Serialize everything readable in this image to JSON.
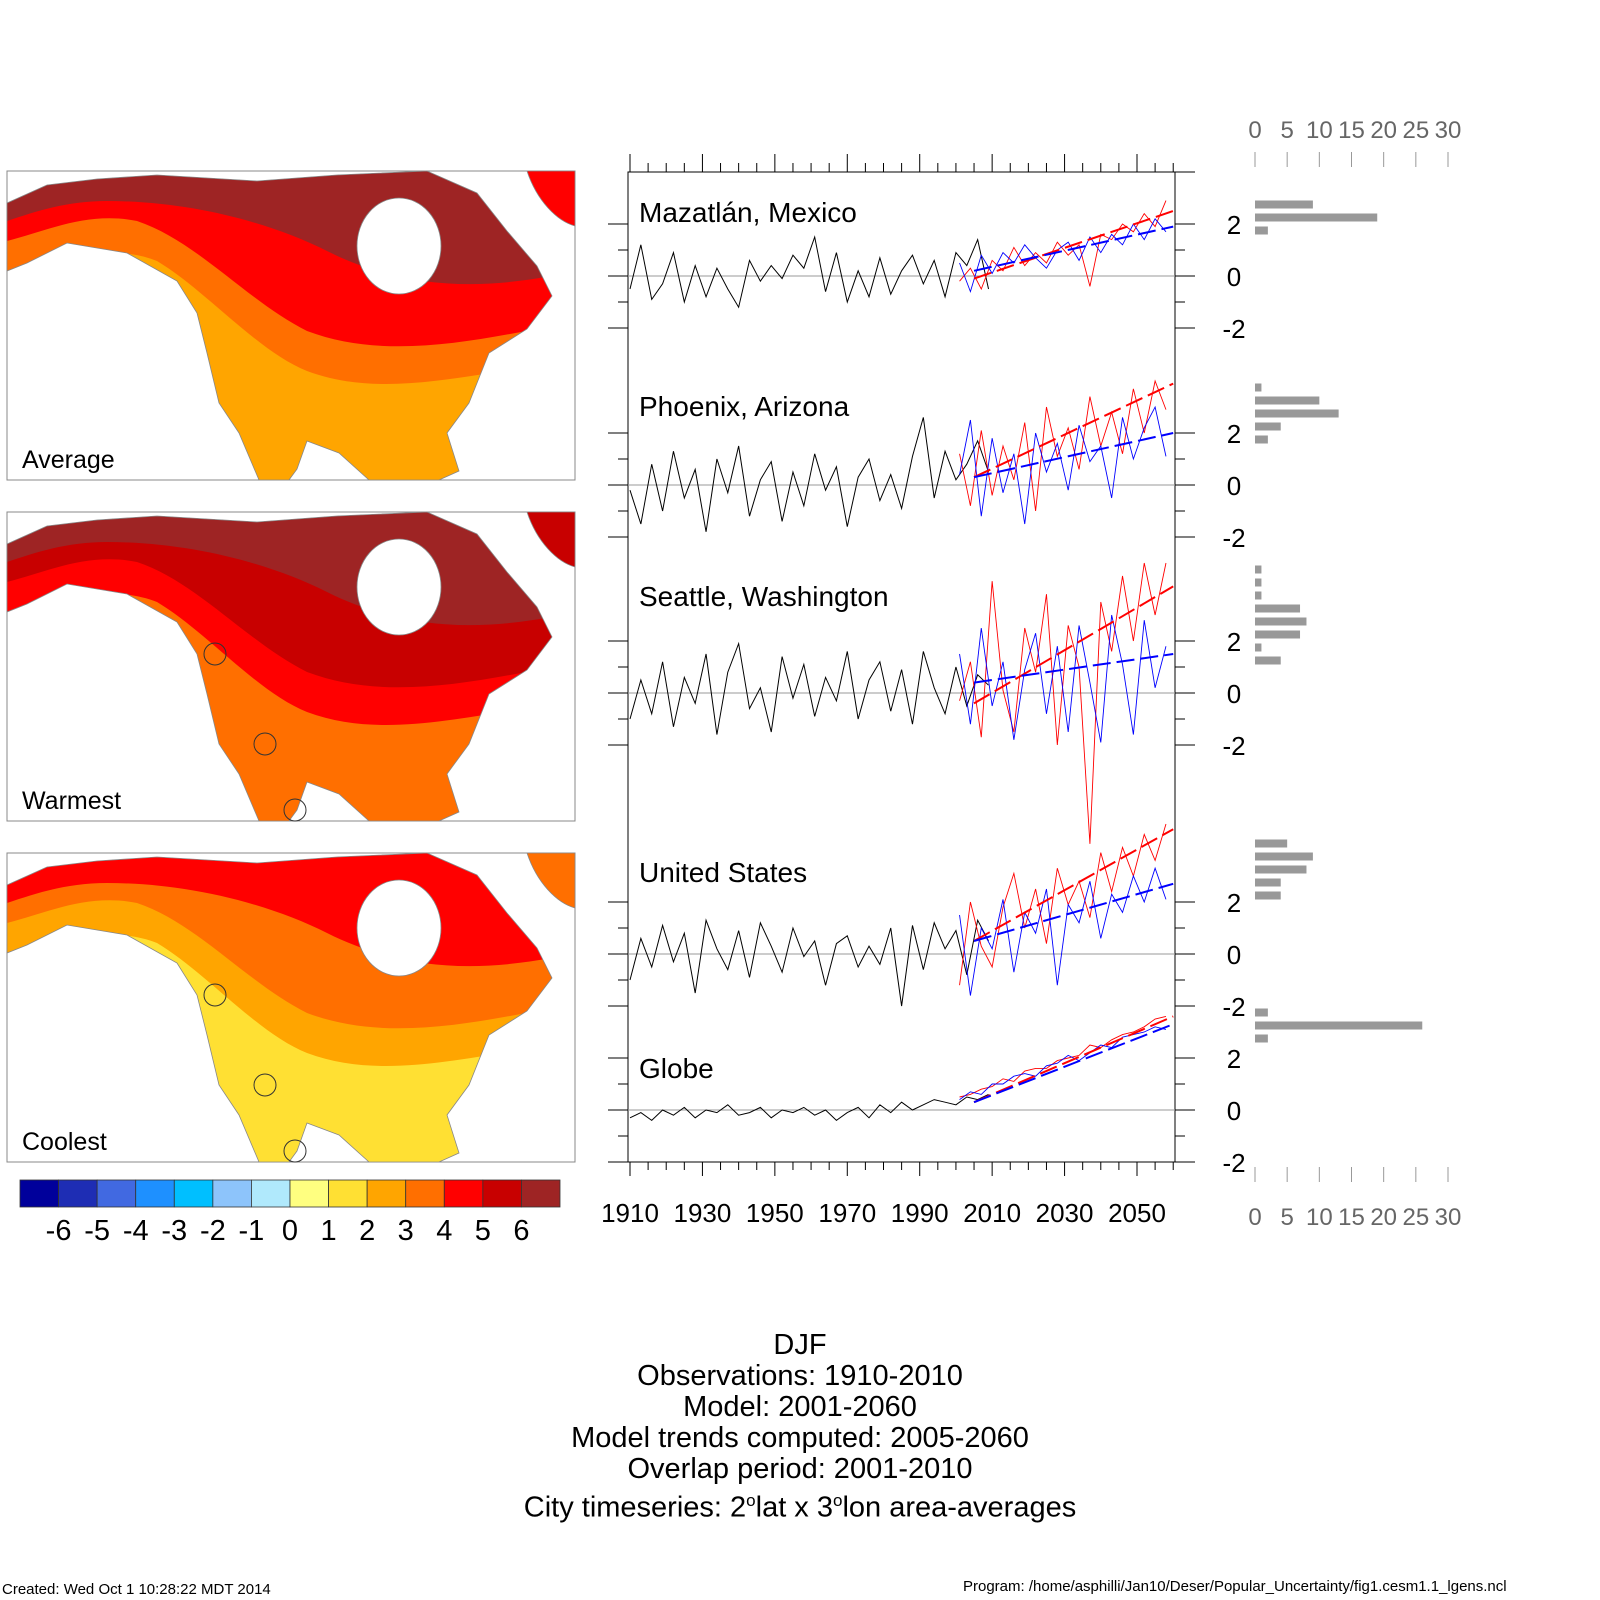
{
  "maps": {
    "panels": [
      {
        "label": "Average",
        "palette": [
          "#9e2424",
          "#ff0000",
          "#ff6f00",
          "#ffa500"
        ]
      },
      {
        "label": "Warmest",
        "palette": [
          "#9e2424",
          "#c80000",
          "#ff0000",
          "#ff6f00"
        ]
      },
      {
        "label": "Coolest",
        "palette": [
          "#ff0000",
          "#ff6f00",
          "#ffa500",
          "#ffe033"
        ]
      }
    ],
    "colorbar": {
      "colors": [
        "#00009b",
        "#1e2db4",
        "#4169e1",
        "#1e90ff",
        "#00bfff",
        "#8dc4fb",
        "#b0e9fc",
        "#ffff80",
        "#ffe033",
        "#ffa500",
        "#ff6f00",
        "#ff0000",
        "#c80000",
        "#9e2424"
      ],
      "labels": [
        "-6",
        "-5",
        "-4",
        "-3",
        "-2",
        "-1",
        "0",
        "1",
        "2",
        "3",
        "4",
        "5",
        "6"
      ]
    }
  },
  "chart_data": {
    "type": "line",
    "x_ticks": [
      "1910",
      "1930",
      "1950",
      "1970",
      "1990",
      "2010",
      "2030",
      "2050"
    ],
    "xlim": [
      1909.5,
      2060.5
    ],
    "y_tick_labels": [
      "2",
      "0",
      "-2"
    ],
    "colors": {
      "observed": "#000000",
      "model_red": "#ff0000",
      "model_blue": "#0000ff",
      "histogram": "#999999"
    },
    "observed_years": {
      "start": 1910,
      "step": 3
    },
    "model_years": {
      "start": 2001,
      "step": 3
    },
    "panels": [
      {
        "title": "Mazatlán, Mexico",
        "observed": [
          -0.5,
          1.2,
          -0.9,
          -0.3,
          0.9,
          -1.0,
          0.4,
          -0.8,
          0.3,
          -0.5,
          -1.2,
          0.6,
          -0.2,
          0.4,
          -0.1,
          0.8,
          0.3,
          1.5,
          -0.6,
          0.9,
          -1.0,
          0.2,
          -0.8,
          0.7,
          -0.7,
          0.2,
          0.8,
          -0.3,
          0.6,
          -0.8,
          0.9,
          0.4,
          1.4,
          -0.5
        ],
        "red": [
          -0.2,
          0.3,
          -0.5,
          0.6,
          0.2,
          1.1,
          0.4,
          0.9,
          0.5,
          1.3,
          0.8,
          1.2,
          -0.4,
          1.6,
          1.4,
          2.0,
          1.7,
          2.4,
          1.9,
          2.9
        ],
        "blue": [
          0.5,
          -0.6,
          0.8,
          0.1,
          0.9,
          0.5,
          1.2,
          0.7,
          0.3,
          1.0,
          1.3,
          0.6,
          1.5,
          0.9,
          1.6,
          1.2,
          2.0,
          1.4,
          2.2,
          1.7
        ],
        "red_trend": [
          2005,
          -0.1,
          2060,
          2.5
        ],
        "blue_trend": [
          2005,
          0.2,
          2060,
          1.9
        ],
        "histogram": {
          "bins": [
            2.75,
            2.25,
            1.75
          ],
          "counts": [
            9,
            19,
            2
          ]
        }
      },
      {
        "title": "Phoenix, Arizona",
        "observed": [
          -0.2,
          -1.5,
          0.8,
          -1.0,
          1.3,
          -0.5,
          0.6,
          -1.8,
          1.0,
          -0.3,
          1.5,
          -1.2,
          0.2,
          0.9,
          -1.4,
          0.5,
          -0.8,
          1.2,
          -0.2,
          0.7,
          -1.6,
          0.3,
          1.0,
          -0.6,
          0.4,
          -0.9,
          1.1,
          2.6,
          -0.5,
          1.3,
          0.2,
          0.8,
          1.7,
          0.5
        ],
        "red": [
          1.2,
          -0.8,
          2.1,
          -0.4,
          1.5,
          0.2,
          2.4,
          -1.0,
          3.0,
          1.1,
          2.2,
          0.6,
          3.4,
          1.5,
          2.8,
          1.2,
          3.7,
          2.0,
          4.0,
          2.9
        ],
        "blue": [
          0.4,
          2.5,
          -1.2,
          1.8,
          -0.3,
          1.2,
          -1.5,
          2.0,
          0.5,
          1.6,
          -0.2,
          2.3,
          0.9,
          1.5,
          -0.5,
          2.6,
          1.0,
          2.2,
          3.0,
          1.1
        ],
        "red_trend": [
          2005,
          0.3,
          2060,
          3.9
        ],
        "blue_trend": [
          2005,
          0.3,
          2060,
          2.0
        ],
        "histogram": {
          "bins": [
            3.75,
            3.25,
            2.75,
            2.25,
            1.75
          ],
          "counts": [
            1,
            10,
            13,
            4,
            2
          ]
        }
      },
      {
        "title": "Seattle, Washington",
        "observed": [
          -1.0,
          0.5,
          -0.8,
          1.2,
          -1.3,
          0.6,
          -0.4,
          1.5,
          -1.6,
          0.8,
          1.9,
          -0.6,
          0.2,
          -1.5,
          1.4,
          -0.2,
          1.1,
          -0.9,
          0.6,
          -0.3,
          1.6,
          -1.0,
          0.5,
          1.2,
          -0.7,
          0.9,
          -1.2,
          1.6,
          0.2,
          -0.8,
          1.0,
          -0.5,
          0.7,
          0.3
        ],
        "red": [
          -0.3,
          1.2,
          -1.7,
          4.3,
          0.1,
          -1.5,
          2.5,
          0.8,
          3.8,
          -2.0,
          2.6,
          1.0,
          -5.8,
          3.5,
          1.6,
          4.5,
          2.0,
          5.0,
          3.0,
          5.0
        ],
        "blue": [
          1.5,
          -1.2,
          2.5,
          -0.5,
          1.2,
          -1.8,
          0.9,
          2.3,
          -0.8,
          1.8,
          -1.5,
          2.6,
          0.4,
          -1.9,
          3.0,
          1.1,
          -1.6,
          2.8,
          0.2,
          1.8
        ],
        "red_trend": [
          2005,
          -0.4,
          2060,
          4.1
        ],
        "blue_trend": [
          2005,
          0.4,
          2060,
          1.5
        ],
        "histogram": {
          "bins": [
            4.75,
            4.25,
            3.75,
            3.25,
            2.75,
            2.25,
            1.75,
            1.25
          ],
          "counts": [
            1,
            1,
            1,
            7,
            8,
            7,
            1,
            4
          ]
        }
      },
      {
        "title": "United States",
        "observed": [
          -1.0,
          0.6,
          -0.5,
          1.1,
          -0.3,
          0.8,
          -1.5,
          1.3,
          0.2,
          -0.6,
          0.9,
          -0.9,
          1.2,
          0.3,
          -0.7,
          1.0,
          -0.1,
          0.5,
          -1.2,
          0.4,
          0.7,
          -0.5,
          0.3,
          -0.4,
          1.0,
          -2.0,
          1.1,
          -0.6,
          1.2,
          0.2,
          0.9,
          -0.8,
          1.3,
          0.5
        ],
        "red": [
          -1.2,
          2.0,
          0.3,
          -0.5,
          1.8,
          3.1,
          1.0,
          2.5,
          0.4,
          3.3,
          1.9,
          2.8,
          1.4,
          3.9,
          2.4,
          4.1,
          3.0,
          4.6,
          3.6,
          5.0
        ],
        "blue": [
          1.5,
          -1.6,
          1.0,
          0.2,
          2.1,
          -0.7,
          1.6,
          0.8,
          2.5,
          -1.2,
          1.9,
          1.2,
          2.8,
          0.6,
          2.3,
          1.6,
          3.0,
          2.0,
          3.3,
          2.1
        ],
        "red_trend": [
          2005,
          0.5,
          2060,
          4.8
        ],
        "blue_trend": [
          2005,
          0.5,
          2060,
          2.7
        ],
        "histogram": {
          "bins": [
            4.25,
            3.75,
            3.25,
            2.75,
            2.25
          ],
          "counts": [
            5,
            9,
            8,
            4,
            4
          ]
        }
      },
      {
        "title": "Globe",
        "observed": [
          -0.3,
          -0.1,
          -0.4,
          0.0,
          -0.2,
          0.1,
          -0.3,
          0.0,
          -0.1,
          0.2,
          -0.2,
          -0.1,
          0.1,
          -0.3,
          0.0,
          -0.1,
          0.1,
          -0.2,
          0.0,
          -0.4,
          -0.1,
          0.1,
          -0.3,
          0.2,
          -0.1,
          0.3,
          0.0,
          0.2,
          0.4,
          0.3,
          0.2,
          0.5,
          0.4,
          0.6
        ],
        "red": [
          0.5,
          0.6,
          0.8,
          0.9,
          1.2,
          1.1,
          1.5,
          1.6,
          1.6,
          1.9,
          2.0,
          2.1,
          2.5,
          2.4,
          2.7,
          2.9,
          3.0,
          3.2,
          3.5,
          3.6
        ],
        "blue": [
          0.4,
          0.7,
          0.6,
          1.0,
          1.0,
          1.3,
          1.4,
          1.3,
          1.7,
          1.8,
          2.1,
          1.9,
          2.2,
          2.5,
          2.4,
          2.8,
          2.9,
          3.0,
          3.2,
          3.1
        ],
        "red_trend": [
          2005,
          0.3,
          2060,
          3.6
        ],
        "blue_trend": [
          2005,
          0.3,
          2060,
          3.3
        ],
        "histogram": {
          "bins": [
            3.75,
            3.25,
            2.75
          ],
          "counts": [
            2,
            26,
            2
          ]
        }
      }
    ],
    "histogram_axis": {
      "ticks": [
        "0",
        "5",
        "10",
        "15",
        "20",
        "25",
        "30"
      ],
      "xlim": [
        0,
        30
      ]
    }
  },
  "caption": {
    "season": "DJF",
    "observations": "Observations: 1910-2010",
    "model": "Model: 2001-2060",
    "trends": "Model trends computed: 2005-2060",
    "overlap": "Overlap period: 2001-2010",
    "city_a": "City timeseries: 2",
    "sup1": "o",
    "city_b": "lat x 3",
    "sup2": "o",
    "city_c": "lon area-averages"
  },
  "footer": {
    "created": "Created: Wed Oct  1 10:28:22 MDT 2014",
    "program": "Program: /home/asphilli/Jan10/Deser/Popular_Uncertainty/fig1.cesm1.1_lgens.ncl"
  }
}
